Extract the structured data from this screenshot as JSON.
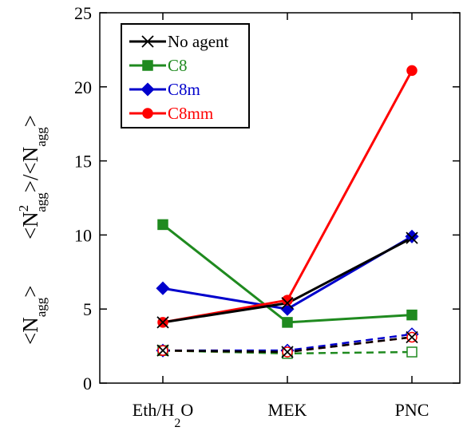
{
  "chart_data": {
    "type": "line",
    "categories": [
      "Eth/H2O",
      "MEK",
      "PNC"
    ],
    "category_labels": [
      {
        "main": "Eth/H",
        "sub": "2",
        "tail": "O"
      },
      {
        "main": "MEK",
        "sub": "",
        "tail": ""
      },
      {
        "main": "PNC",
        "sub": "",
        "tail": ""
      }
    ],
    "ylim": [
      0,
      25
    ],
    "yticks": [
      "0",
      "5",
      "10",
      "15",
      "20",
      "25"
    ],
    "ylabel_upper": {
      "main": "<N",
      "sup": "2",
      "sub": "agg",
      "mid": ">/<N",
      "sub2": "agg",
      "end": ">"
    },
    "ylabel_lower": {
      "main": "<N",
      "sub": "agg",
      "end": ">"
    },
    "legend_position": "top-left",
    "series": [
      {
        "name": "No agent",
        "color": "#000000",
        "marker": "x",
        "weight_avg": [
          4.1,
          5.4,
          9.8
        ],
        "number_avg": [
          2.2,
          2.1,
          3.1
        ]
      },
      {
        "name": "C8",
        "color": "#1f8a1f",
        "marker": "square",
        "weight_avg": [
          10.7,
          4.1,
          4.6
        ],
        "number_avg": [
          2.2,
          2.0,
          2.1
        ]
      },
      {
        "name": "C8m",
        "color": "#0000cc",
        "marker": "diamond",
        "weight_avg": [
          6.4,
          5.0,
          9.9
        ],
        "number_avg": [
          2.2,
          2.2,
          3.3
        ]
      },
      {
        "name": "C8mm",
        "color": "#ff0000",
        "marker": "circle",
        "weight_avg": [
          4.1,
          5.6,
          21.1
        ],
        "number_avg": [
          2.2,
          2.1,
          3.1
        ]
      }
    ]
  }
}
